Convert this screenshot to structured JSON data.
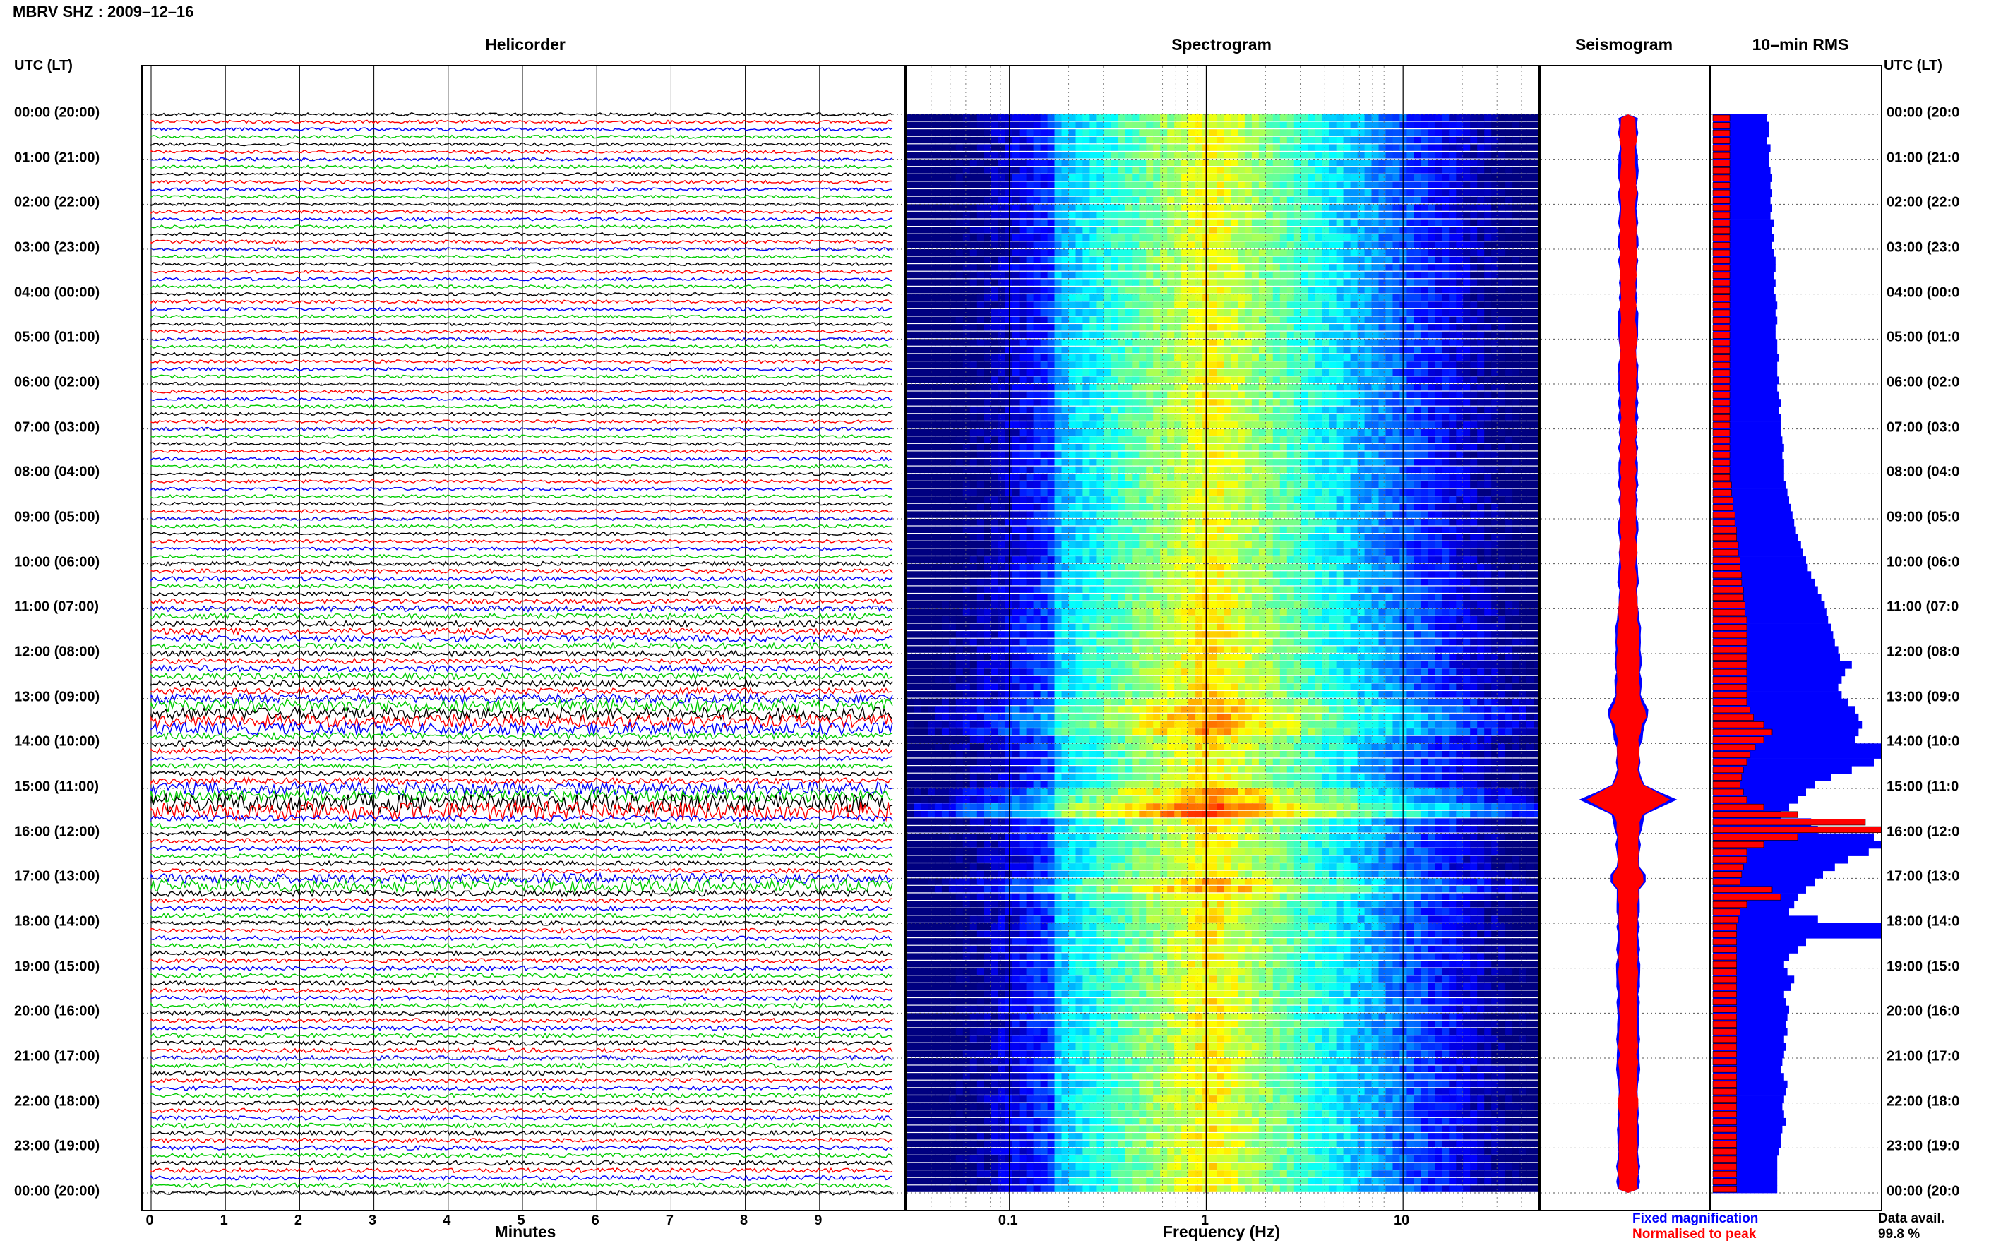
{
  "header": {
    "title": "MBRV SHZ : 2009–12–16",
    "utc_label": "UTC (LT)"
  },
  "panels": {
    "helicorder": "Helicorder",
    "spectrogram": "Spectrogram",
    "seismogram": "Seismogram",
    "rms": "10–min RMS"
  },
  "axes": {
    "helicorder_xlabel": "Minutes",
    "spectrogram_xlabel": "Frequency (Hz)"
  },
  "legend": {
    "fixed": "Fixed magnification",
    "normalised": "Normalised to peak",
    "fixed_color": "#0000ff",
    "normalised_color": "#ff0000"
  },
  "data_avail": {
    "label": "Data avail.",
    "value": "99.8 %"
  },
  "hour_labels_left": [
    "00:00 (20:00)",
    "01:00 (21:00)",
    "02:00 (22:00)",
    "03:00 (23:00)",
    "04:00 (00:00)",
    "05:00 (01:00)",
    "06:00 (02:00)",
    "07:00 (03:00)",
    "08:00 (04:00)",
    "09:00 (05:00)",
    "10:00 (06:00)",
    "11:00 (07:00)",
    "12:00 (08:00)",
    "13:00 (09:00)",
    "14:00 (10:00)",
    "15:00 (11:00)",
    "16:00 (12:00)",
    "17:00 (13:00)",
    "18:00 (14:00)",
    "19:00 (15:00)",
    "20:00 (16:00)",
    "21:00 (17:00)",
    "22:00 (18:00)",
    "23:00 (19:00)",
    "00:00 (20:00)"
  ],
  "hour_labels_right": [
    "00:00 (20:0",
    "01:00 (21:0",
    "02:00 (22:0",
    "03:00 (23:0",
    "04:00 (00:0",
    "05:00 (01:0",
    "06:00 (02:0",
    "07:00 (03:0",
    "08:00 (04:0",
    "09:00 (05:0",
    "10:00 (06:0",
    "11:00 (07:0",
    "12:00 (08:0",
    "13:00 (09:0",
    "14:00 (10:0",
    "15:00 (11:0",
    "16:00 (12:0",
    "17:00 (13:0",
    "18:00 (14:0",
    "19:00 (15:0",
    "20:00 (16:0",
    "21:00 (17:0",
    "22:00 (18:0",
    "23:00 (19:0",
    "00:00 (20:0"
  ],
  "chart_data": [
    {
      "type": "line",
      "panel": "Helicorder",
      "xlabel": "Minutes",
      "x_ticks": [
        "0",
        "1",
        "2",
        "3",
        "4",
        "5",
        "6",
        "7",
        "8",
        "9"
      ],
      "xlim": [
        0,
        10
      ],
      "trace_colors": [
        "#000000",
        "#ff0000",
        "#0000ff",
        "#00cc00"
      ],
      "rows_per_hour": 6,
      "hours": 24,
      "row_activity": [
        1,
        1,
        1,
        1,
        1,
        1,
        1,
        1,
        1,
        1,
        1,
        1,
        1,
        1,
        1,
        1,
        1,
        1,
        1,
        1,
        1,
        1,
        1,
        1,
        1,
        1,
        1,
        1,
        1,
        1,
        1,
        1,
        1,
        1,
        1,
        1,
        1,
        1,
        1,
        1,
        1,
        1,
        1,
        1,
        1,
        1,
        1,
        1,
        1,
        1,
        1,
        1,
        1,
        1,
        1,
        1,
        1,
        1,
        1,
        1,
        1.4,
        1.4,
        1.4,
        1.4,
        1.4,
        1.6,
        1.8,
        1.8,
        1.8,
        2,
        2,
        2,
        1.8,
        1.8,
        2,
        2,
        2,
        2,
        3,
        4,
        4,
        4,
        4,
        2,
        2,
        1.6,
        1.4,
        1.4,
        1.6,
        2,
        4,
        4,
        6,
        6,
        1.8,
        1.8,
        1.4,
        1.4,
        1.4,
        1.4,
        1.4,
        1.4,
        3,
        4,
        2,
        1.4,
        1.4,
        1.4,
        1.4,
        1.4,
        1.4,
        1.4,
        1.4,
        1.4,
        1.4,
        1.4,
        1.4,
        1.4,
        1.4,
        1.4,
        1.4,
        1.4,
        1.4,
        1.4,
        1.4,
        1.4,
        1.4,
        1.4,
        1.4,
        1.4,
        1.4,
        1.4,
        1.4,
        1.4,
        1.4,
        1.4,
        1.4,
        1.4,
        1.4,
        1.4,
        1.4,
        1.4,
        1.4,
        1.4,
        1.4,
        1.4
      ]
    },
    {
      "type": "heatmap",
      "panel": "Spectrogram",
      "xlabel": "Frequency (Hz)",
      "x_scale": "log",
      "xlim": [
        0.03,
        50
      ],
      "x_ticks": [
        "0.1",
        "1",
        "10"
      ],
      "peak_frequency_hz": 1,
      "colormap": "jet"
    },
    {
      "type": "area",
      "panel": "Seismogram",
      "series": [
        {
          "name": "Fixed magnification",
          "color": "#0000ff"
        },
        {
          "name": "Normalised to peak",
          "color": "#ff0000"
        }
      ],
      "amplitude_profile": [
        1,
        1,
        1,
        1,
        1,
        1,
        1,
        1,
        1,
        1,
        1,
        1,
        1,
        1,
        1,
        1,
        1,
        1,
        1,
        1,
        1,
        1,
        1,
        1,
        1,
        1,
        1,
        1,
        1,
        1,
        1,
        1,
        1,
        1,
        1,
        1,
        1,
        1,
        1,
        1,
        1,
        1,
        1,
        1,
        1,
        1,
        1,
        1,
        1,
        1,
        1,
        1,
        1,
        1,
        1,
        1,
        1,
        1,
        1,
        1,
        1,
        1,
        1.1,
        1.1,
        1.1,
        1.2,
        1.3,
        1.3,
        1.4,
        1.5,
        1.5,
        1.5,
        1.5,
        1.5,
        1.5,
        1.5,
        1.5,
        1.6,
        1.8,
        2.5,
        2.5,
        2,
        1.6,
        1.5,
        1.4,
        1.4,
        1.4,
        1.4,
        1.6,
        2,
        4,
        6,
        4,
        2,
        1.6,
        1.5,
        1.4,
        1.4,
        1.3,
        1.3,
        1.3,
        2.2,
        2.2,
        1.3,
        1.3,
        1.2,
        1.2,
        1.2,
        1.2,
        1.2,
        1.2,
        1.2,
        1.2,
        1.2,
        1.2,
        1.2,
        1.2,
        1.2,
        1.2,
        1.2,
        1.2,
        1.2,
        1.2,
        1.2,
        1.2,
        1.2,
        1.2,
        1.2,
        1.2,
        1.2,
        1.2,
        1.2,
        1.2,
        1.2,
        1.2,
        1.2,
        1.2,
        1.2,
        1.2,
        1.2,
        1.2,
        1.2,
        1.2,
        1.2,
        1.2
      ]
    },
    {
      "type": "bar",
      "panel": "10–min RMS",
      "series": [
        {
          "name": "Fixed magnification",
          "color": "#0000ff",
          "values": [
            0.32,
            0.33,
            0.33,
            0.32,
            0.34,
            0.33,
            0.33,
            0.34,
            0.35,
            0.34,
            0.35,
            0.34,
            0.35,
            0.34,
            0.36,
            0.35,
            0.36,
            0.35,
            0.36,
            0.37,
            0.37,
            0.36,
            0.37,
            0.36,
            0.37,
            0.38,
            0.37,
            0.38,
            0.37,
            0.37,
            0.38,
            0.38,
            0.39,
            0.38,
            0.38,
            0.39,
            0.38,
            0.39,
            0.4,
            0.39,
            0.4,
            0.4,
            0.4,
            0.41,
            0.42,
            0.41,
            0.42,
            0.42,
            0.42,
            0.43,
            0.44,
            0.45,
            0.46,
            0.47,
            0.48,
            0.49,
            0.5,
            0.52,
            0.53,
            0.55,
            0.56,
            0.58,
            0.6,
            0.62,
            0.64,
            0.66,
            0.67,
            0.68,
            0.7,
            0.71,
            0.72,
            0.74,
            0.75,
            0.82,
            0.78,
            0.76,
            0.74,
            0.76,
            0.8,
            0.84,
            0.86,
            0.88,
            0.86,
            0.84,
            1.0,
            1.0,
            0.95,
            0.82,
            0.7,
            0.6,
            0.55,
            0.5,
            0.45,
            0.4,
            0.58,
            0.62,
            0.95,
            1.0,
            0.92,
            0.8,
            0.72,
            0.65,
            0.6,
            0.55,
            0.5,
            0.48,
            0.45,
            0.62,
            1.0,
            1.0,
            0.55,
            0.5,
            0.45,
            0.42,
            0.44,
            0.48,
            0.46,
            0.42,
            0.43,
            0.45,
            0.44,
            0.43,
            0.44,
            0.42,
            0.43,
            0.42,
            0.41,
            0.4,
            0.42,
            0.44,
            0.43,
            0.42,
            0.41,
            0.42,
            0.43,
            0.41,
            0.4,
            0.4,
            0.39,
            0.38,
            0.38,
            0.38,
            0.38,
            0.38
          ]
        },
        {
          "name": "Normalised to peak",
          "color": "#ff0000",
          "values": [
            0.1,
            0.1,
            0.1,
            0.1,
            0.1,
            0.1,
            0.1,
            0.1,
            0.1,
            0.1,
            0.1,
            0.1,
            0.1,
            0.1,
            0.1,
            0.1,
            0.1,
            0.1,
            0.1,
            0.1,
            0.1,
            0.1,
            0.1,
            0.1,
            0.1,
            0.1,
            0.1,
            0.1,
            0.1,
            0.1,
            0.1,
            0.1,
            0.1,
            0.1,
            0.1,
            0.1,
            0.1,
            0.1,
            0.1,
            0.1,
            0.1,
            0.1,
            0.1,
            0.1,
            0.1,
            0.1,
            0.1,
            0.1,
            0.1,
            0.11,
            0.11,
            0.12,
            0.12,
            0.13,
            0.13,
            0.14,
            0.14,
            0.15,
            0.15,
            0.16,
            0.16,
            0.17,
            0.17,
            0.18,
            0.18,
            0.19,
            0.19,
            0.2,
            0.2,
            0.2,
            0.2,
            0.2,
            0.2,
            0.2,
            0.2,
            0.2,
            0.2,
            0.2,
            0.2,
            0.22,
            0.24,
            0.3,
            0.35,
            0.3,
            0.25,
            0.22,
            0.2,
            0.18,
            0.17,
            0.16,
            0.18,
            0.2,
            0.3,
            0.5,
            0.9,
            1.0,
            0.5,
            0.3,
            0.2,
            0.2,
            0.18,
            0.17,
            0.16,
            0.35,
            0.4,
            0.2,
            0.16,
            0.15,
            0.14,
            0.14,
            0.14,
            0.14,
            0.14,
            0.14,
            0.14,
            0.14,
            0.14,
            0.14,
            0.14,
            0.14,
            0.14,
            0.14,
            0.14,
            0.14,
            0.14,
            0.14,
            0.14,
            0.14,
            0.14,
            0.14,
            0.14,
            0.14,
            0.14,
            0.14,
            0.14,
            0.14,
            0.14,
            0.14,
            0.14,
            0.14,
            0.14,
            0.14,
            0.14,
            0.14
          ]
        }
      ]
    }
  ]
}
